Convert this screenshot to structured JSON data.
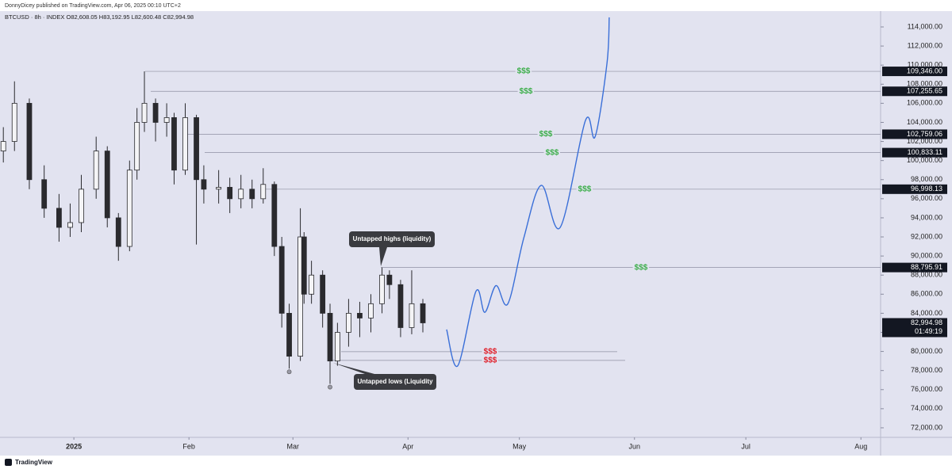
{
  "header": {
    "publisher": "DonnyDicey published on TradingView.com, Apr 06, 2025 00:10 UTC+2"
  },
  "chart_data": {
    "type": "candlestick",
    "symbol_line": "BTCUSD · 8h · INDEX  O82,608.05 H83,192.95 L82,600.48 C82,994.98",
    "up_color": "#f4f4f6",
    "down_color": "#2a2a2e",
    "wick_color": "#2a2a2e",
    "x": [
      -19,
      -16,
      -12,
      -8,
      -4,
      -1,
      2,
      6,
      9,
      12,
      15,
      17,
      19,
      22,
      25,
      27,
      30,
      33,
      35,
      39,
      42,
      45,
      48,
      51,
      54,
      56,
      58,
      61,
      62,
      64,
      67,
      69,
      71,
      74,
      77,
      80,
      83,
      85,
      88,
      91,
      94
    ],
    "open": [
      101000,
      102000,
      106000,
      98000,
      95000,
      93000,
      93500,
      97000,
      101000,
      94000,
      91000,
      99000,
      104000,
      106000,
      104000,
      104500,
      99000,
      104500,
      98000,
      97000,
      97200,
      96000,
      97000,
      96000,
      97500,
      91000,
      84000,
      79500,
      92000,
      86000,
      88000,
      84000,
      79000,
      82000,
      84000,
      83500,
      85000,
      88000,
      87000,
      82500,
      85000
    ],
    "high": [
      103500,
      108300,
      106500,
      99500,
      96500,
      95500,
      98500,
      102500,
      101500,
      94500,
      100000,
      105500,
      109346,
      106500,
      106000,
      105000,
      106000,
      104800,
      99500,
      99000,
      98200,
      98500,
      98000,
      99200,
      97800,
      92000,
      85000,
      95000,
      92500,
      89500,
      88500,
      85000,
      83000,
      85500,
      85200,
      86000,
      88796,
      88500,
      87500,
      88500,
      85500
    ],
    "low": [
      99800,
      101000,
      97000,
      94000,
      91500,
      92000,
      92500,
      96000,
      93000,
      89500,
      90500,
      98000,
      103000,
      102000,
      102500,
      97500,
      98500,
      91200,
      95500,
      95500,
      94500,
      95000,
      95000,
      95500,
      90000,
      82500,
      78200,
      79000,
      85000,
      85000,
      82500,
      76600,
      78500,
      80500,
      81500,
      82000,
      84000,
      85500,
      81500,
      81800,
      82000
    ],
    "close": [
      102000,
      106000,
      98000,
      95000,
      93000,
      93500,
      97000,
      101000,
      94000,
      91000,
      99000,
      104000,
      106000,
      104000,
      104500,
      99000,
      104500,
      98000,
      97000,
      97200,
      96000,
      97000,
      96000,
      97500,
      91000,
      84000,
      79500,
      92000,
      86000,
      88000,
      84000,
      79000,
      82000,
      84000,
      83500,
      85000,
      88000,
      87000,
      82500,
      85000,
      82994.98
    ],
    "xlim": [
      -19.9,
      217.3
    ],
    "xticks": [
      {
        "value": 0,
        "label": "2025"
      },
      {
        "value": 31,
        "label": "Feb"
      },
      {
        "value": 59,
        "label": "Mar"
      },
      {
        "value": 90,
        "label": "Apr"
      },
      {
        "value": 120,
        "label": "May"
      },
      {
        "value": 151,
        "label": "Jun"
      },
      {
        "value": 181,
        "label": "Jul"
      },
      {
        "value": 212,
        "label": "Aug"
      }
    ],
    "ylim": [
      71000,
      115660
    ],
    "yticks": [
      {
        "value": 72000,
        "label": "72,000.00"
      },
      {
        "value": 74000,
        "label": "74,000.00"
      },
      {
        "value": 76000,
        "label": "76,000.00"
      },
      {
        "value": 78000,
        "label": "78,000.00"
      },
      {
        "value": 80000,
        "label": "80,000.00"
      },
      {
        "value": 82000,
        "label": "82,000.00"
      },
      {
        "value": 84000,
        "label": "84,000.00"
      },
      {
        "value": 86000,
        "label": "86,000.00"
      },
      {
        "value": 88000,
        "label": "88,000.00"
      },
      {
        "value": 90000,
        "label": "90,000.00"
      },
      {
        "value": 92000,
        "label": "92,000.00"
      },
      {
        "value": 94000,
        "label": "94,000.00"
      },
      {
        "value": 96000,
        "label": "96,000.00"
      },
      {
        "value": 98000,
        "label": "98,000.00"
      },
      {
        "value": 100000,
        "label": "100,000.00"
      },
      {
        "value": 102000,
        "label": "102,000.00"
      },
      {
        "value": 104000,
        "label": "104,000.00"
      },
      {
        "value": 106000,
        "label": "106,000.00"
      },
      {
        "value": 108000,
        "label": "108,000.00"
      },
      {
        "value": 110000,
        "label": "110,000.00"
      },
      {
        "value": 112000,
        "label": "112,000.00"
      },
      {
        "value": 114000,
        "label": "114,000.00"
      }
    ],
    "levels": [
      {
        "value": 109346,
        "label": "109,346.00",
        "marker": "$$$",
        "color": "#3cae4a"
      },
      {
        "value": 107255.65,
        "label": "107,255.65",
        "marker": "$$$",
        "color": "#3cae4a"
      },
      {
        "value": 102759.06,
        "label": "102,759.06",
        "marker": "$$$",
        "color": "#3cae4a"
      },
      {
        "value": 100833.11,
        "label": "100,833.11",
        "marker": "$$$",
        "color": "#3cae4a"
      },
      {
        "value": 96998.13,
        "label": "96,998.13",
        "marker": "$$$",
        "color": "#3cae4a"
      },
      {
        "value": 88795.91,
        "label": "88,795.91",
        "marker": "$$$",
        "color": "#3cae4a"
      },
      {
        "value": 79975,
        "marker": "$$$",
        "color": "#e0202a"
      },
      {
        "value": 79060,
        "marker": "$$$",
        "color": "#e0202a"
      }
    ],
    "current_price": {
      "value": 82994.98,
      "label": "82,994.98",
      "countdown": "01:49:19"
    },
    "projection": {
      "color": "#3a6fd8",
      "x": [
        100.4,
        103.4,
        108.3,
        110.7,
        113.7,
        116.9,
        121.2,
        125.9,
        131,
        137.8,
        140.4,
        143.6,
        144.2
      ],
      "values": [
        82300,
        78500,
        86300,
        84100,
        86900,
        85000,
        91900,
        97400,
        93000,
        104200,
        102500,
        110200,
        115000
      ]
    },
    "annotations": [
      "Untapped highs (liquidity)",
      "Untapped lows (Liquidity"
    ]
  },
  "footer": {
    "brand": "TradingView"
  }
}
